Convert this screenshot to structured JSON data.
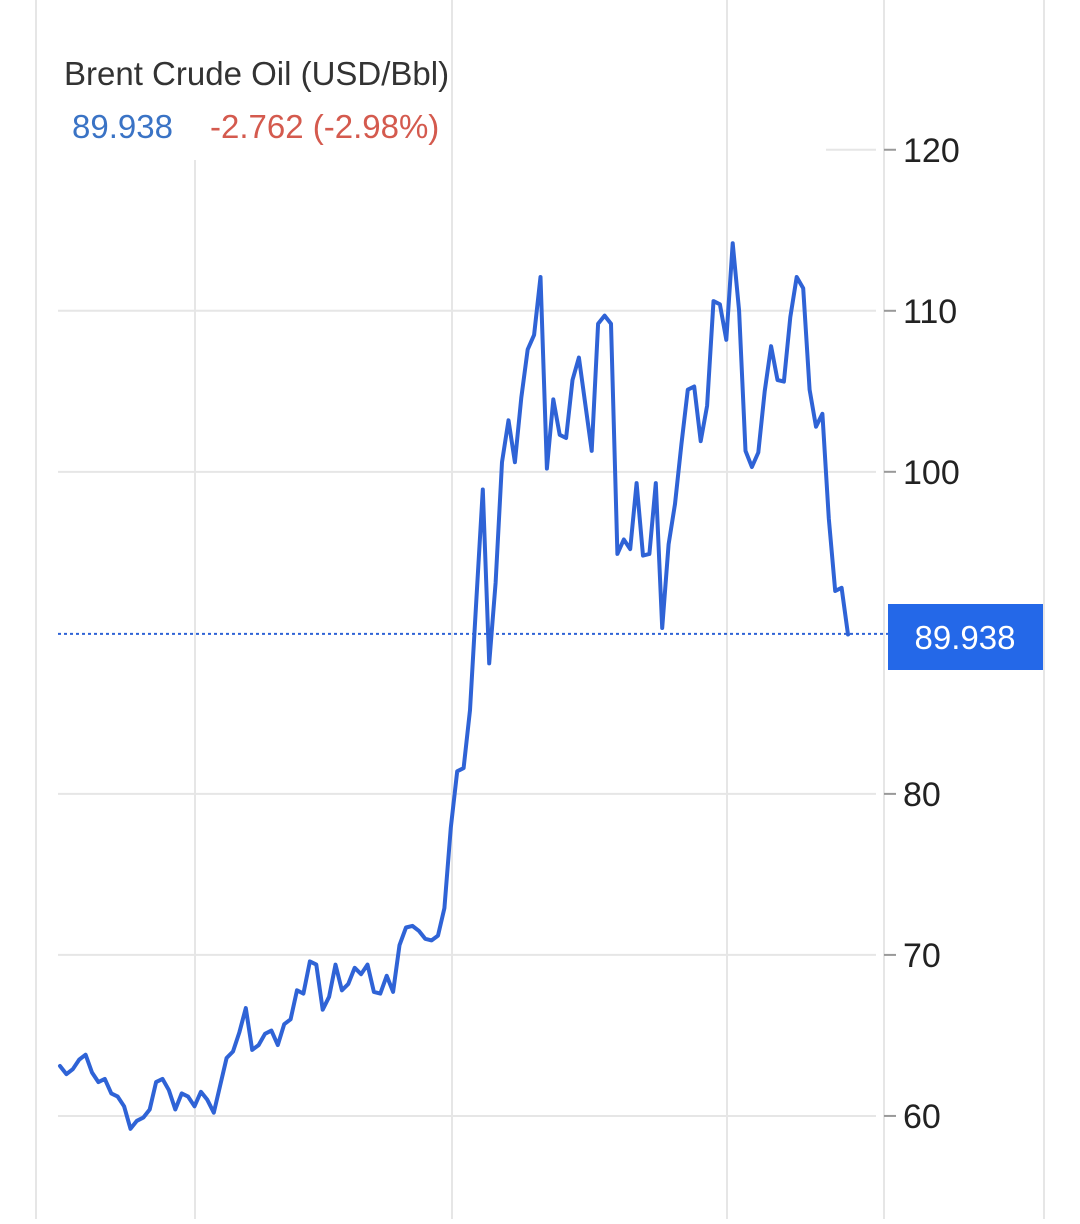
{
  "header": {
    "title": "Brent Crude Oil (USD/Bbl)",
    "price": "89.938",
    "change": "-2.762 (-2.98%)"
  },
  "colors": {
    "line": "#2f63d6",
    "price_text": "#3a73c5",
    "change_text": "#d45a4e",
    "label_bg": "#2468e8",
    "grid": "#e6e6e6",
    "axis_text": "#222222",
    "title_text": "#333333"
  },
  "chart_data": {
    "type": "line",
    "title": "Brent Crude Oil (USD/Bbl)",
    "xlabel": "",
    "ylabel": "",
    "ylim": [
      53.6,
      129.3
    ],
    "y_ticks": [
      60,
      70,
      80,
      100,
      110,
      120
    ],
    "y_tick_labels": [
      "60",
      "70",
      "80",
      "100",
      "110",
      "120"
    ],
    "grid": true,
    "current_value": 89.938,
    "current_value_label": "89.938",
    "series": [
      {
        "values": [
          63.1,
          62.6,
          62.9,
          63.5,
          63.8,
          62.7,
          62.1,
          62.3,
          61.4,
          61.2,
          60.6,
          59.2,
          59.7,
          59.9,
          60.4,
          62.1,
          62.3,
          61.6,
          60.4,
          61.4,
          61.2,
          60.6,
          61.5,
          61.0,
          60.2,
          61.9,
          63.6,
          64.0,
          65.2,
          66.7,
          64.1,
          64.4,
          65.1,
          65.3,
          64.4,
          65.7,
          66.0,
          67.8,
          67.6,
          69.6,
          69.4,
          66.6,
          67.4,
          69.4,
          67.8,
          68.2,
          69.2,
          68.8,
          69.4,
          67.7,
          67.6,
          68.7,
          67.7,
          70.6,
          71.7,
          71.8,
          71.5,
          71.0,
          70.9,
          71.2,
          72.9,
          77.9,
          81.4,
          81.6,
          85.2,
          92.1,
          98.9,
          88.1,
          93.1,
          100.6,
          103.2,
          100.6,
          104.6,
          107.6,
          108.5,
          112.1,
          100.2,
          104.5,
          102.3,
          102.1,
          105.7,
          107.1,
          104.2,
          101.3,
          109.2,
          109.7,
          109.2,
          94.9,
          95.8,
          95.2,
          99.3,
          94.8,
          94.9,
          99.3,
          90.3,
          95.5,
          98.0,
          101.7,
          105.1,
          105.3,
          101.9,
          104.1,
          110.6,
          110.4,
          108.2,
          114.2,
          110.0,
          101.3,
          100.3,
          101.2,
          105.0,
          107.8,
          105.7,
          105.6,
          109.6,
          112.1,
          111.4,
          105.1,
          102.8,
          103.6,
          97.1,
          92.6,
          92.8,
          89.9
        ]
      }
    ]
  }
}
